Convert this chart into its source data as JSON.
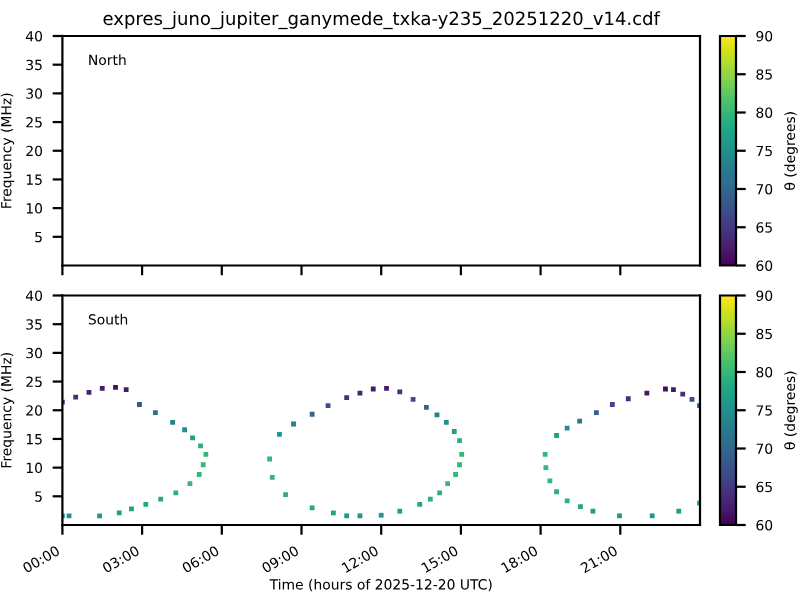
{
  "chart_data": [
    {
      "type": "scatter",
      "title": "expres_juno_jupiter_ganymede_txka-y235_20251220_v14.cdf",
      "ylabel": "Frequency (MHz)",
      "annotations": [
        "North"
      ],
      "xlim": [
        0,
        24
      ],
      "xticks": [
        {
          "value": 0,
          "label": null
        },
        {
          "value": 3,
          "label": null
        },
        {
          "value": 6,
          "label": null
        },
        {
          "value": 9,
          "label": null
        },
        {
          "value": 12,
          "label": null
        },
        {
          "value": 15,
          "label": null
        },
        {
          "value": 18,
          "label": null
        },
        {
          "value": 21,
          "label": null
        }
      ],
      "ylim": [
        0,
        40
      ],
      "yticks": [
        5,
        10,
        15,
        20,
        25,
        30,
        35,
        40
      ],
      "tick_labels": "y",
      "clabel": "θ (degrees)",
      "clim": [
        60,
        90
      ],
      "cticks": [
        60,
        65,
        70,
        75,
        80,
        85,
        90
      ]
    },
    {
      "type": "scatter",
      "ylabel": "Frequency (MHz)",
      "xlabel": "Time (hours of 2025-12-20 UTC)",
      "annotations": [
        "South"
      ],
      "xlim": [
        0,
        24
      ],
      "xticks": [
        {
          "value": 0,
          "label": "00:00"
        },
        {
          "value": 3,
          "label": "03:00"
        },
        {
          "value": 6,
          "label": "06:00"
        },
        {
          "value": 9,
          "label": "09:00"
        },
        {
          "value": 12,
          "label": "12:00"
        },
        {
          "value": 15,
          "label": "15:00"
        },
        {
          "value": 18,
          "label": "18:00"
        },
        {
          "value": 21,
          "label": "21:00"
        }
      ],
      "ylim": [
        0,
        40
      ],
      "yticks": [
        5,
        10,
        15,
        20,
        25,
        30,
        35,
        40
      ],
      "clabel": "θ (degrees)",
      "clim": [
        60,
        90
      ],
      "cticks": [
        60,
        65,
        70,
        75,
        80,
        85,
        90
      ],
      "marker": "square",
      "series": [
        {
          "x": [
            0,
            0.5,
            1.0,
            1.5,
            2.0,
            2.4,
            2.9,
            3.5,
            4.15,
            4.6,
            4.9,
            5.2,
            5.4,
            5.3,
            5.15,
            4.8,
            4.27,
            3.7,
            3.14,
            2.6,
            2.14,
            1.4,
            0.25,
            0,
            7.8,
            8.17,
            8.7,
            9.4,
            10.0,
            10.7,
            11.2,
            11.7,
            12.2,
            12.7,
            13.2,
            13.7,
            14.1,
            14.45,
            14.75,
            14.95,
            15.03,
            14.95,
            14.8,
            14.5,
            14.2,
            13.85,
            13.45,
            12.7,
            12.0,
            11.2,
            10.7,
            10.2,
            9.4,
            8.4,
            7.9,
            18.17,
            18.6,
            19.0,
            19.47,
            20.1,
            20.7,
            21.3,
            22.0,
            22.7,
            23.0,
            23.35,
            23.7,
            23.98,
            18.2,
            18.35,
            18.6,
            19.0,
            19.5,
            19.97,
            20.97,
            22.2,
            23.2,
            23.98
          ],
          "values": [
            21.4,
            22.3,
            23.1,
            23.8,
            24.0,
            23.6,
            21.0,
            19.6,
            17.9,
            16.6,
            15.2,
            13.8,
            12.3,
            10.5,
            8.8,
            7.2,
            5.6,
            4.5,
            3.6,
            2.8,
            2.1,
            1.6,
            1.6,
            1.6,
            11.5,
            15.8,
            17.6,
            19.3,
            20.8,
            22.2,
            23.0,
            23.7,
            23.8,
            23.2,
            21.9,
            20.5,
            19.2,
            17.9,
            16.3,
            14.7,
            12.3,
            10.5,
            8.8,
            7.2,
            5.6,
            4.5,
            3.6,
            2.4,
            1.7,
            1.6,
            1.6,
            2.1,
            3.0,
            5.3,
            8.3,
            12.3,
            15.6,
            16.9,
            18.1,
            19.6,
            21.0,
            22.0,
            23.0,
            23.7,
            23.6,
            22.8,
            21.9,
            20.8,
            10.0,
            7.7,
            5.8,
            4.2,
            3.2,
            2.4,
            1.6,
            1.6,
            2.4,
            3.8
          ],
          "cvalues": [
            66,
            64,
            63,
            62,
            61,
            62,
            68,
            71,
            73,
            75,
            77,
            79,
            80,
            80,
            80,
            80,
            79,
            78,
            78,
            77,
            77,
            76,
            75,
            75,
            80,
            76,
            73,
            70,
            67,
            64,
            63,
            62,
            62,
            64,
            67,
            70,
            73,
            75,
            77,
            79,
            80,
            80,
            80,
            80,
            79,
            79,
            78,
            77,
            76,
            76,
            76,
            77,
            78,
            79,
            80,
            80,
            77,
            75,
            72,
            69,
            66,
            64,
            62,
            61,
            62,
            64,
            67,
            70,
            80,
            80,
            79,
            79,
            78,
            77,
            76,
            76,
            77,
            78
          ]
        }
      ]
    }
  ]
}
